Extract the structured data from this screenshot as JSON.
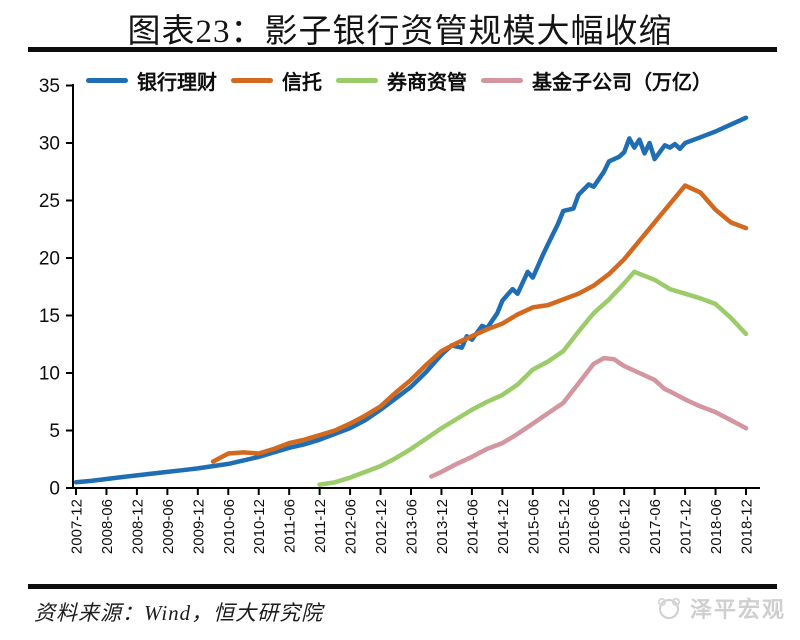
{
  "page": {
    "title": "图表23：影子银行资管规模大幅收缩"
  },
  "footer": {
    "source": "资料来源：Wind，恒大研究院",
    "watermark": "泽平宏观"
  },
  "chart_data": {
    "type": "line",
    "title": "图表23：影子银行资管规模大幅收缩",
    "unit": "万亿",
    "ylim": [
      0,
      35
    ],
    "yticks": [
      0,
      5,
      10,
      15,
      20,
      25,
      30,
      35
    ],
    "xtick_labels": [
      "2007-12",
      "2008-06",
      "2008-12",
      "2009-06",
      "2009-12",
      "2010-06",
      "2010-12",
      "2011-06",
      "2011-12",
      "2012-06",
      "2012-12",
      "2013-06",
      "2013-12",
      "2014-06",
      "2014-12",
      "2015-06",
      "2015-12",
      "2016-06",
      "2016-12",
      "2017-06",
      "2017-12",
      "2018-06",
      "2018-12"
    ],
    "grid": false,
    "legend_position": "top",
    "axis_color": "#000000",
    "series": [
      {
        "key": "bank-wealth-management",
        "name": "银行理财",
        "color": "#1F6EB4",
        "points": [
          [
            "2007-12",
            0.5
          ],
          [
            "2008-03",
            0.62
          ],
          [
            "2008-06",
            0.78
          ],
          [
            "2008-09",
            0.95
          ],
          [
            "2008-12",
            1.1
          ],
          [
            "2009-03",
            1.25
          ],
          [
            "2009-06",
            1.4
          ],
          [
            "2009-09",
            1.55
          ],
          [
            "2009-12",
            1.7
          ],
          [
            "2010-03",
            1.9
          ],
          [
            "2010-06",
            2.1
          ],
          [
            "2010-09",
            2.4
          ],
          [
            "2010-12",
            2.7
          ],
          [
            "2011-03",
            3.1
          ],
          [
            "2011-06",
            3.5
          ],
          [
            "2011-09",
            3.8
          ],
          [
            "2011-12",
            4.2
          ],
          [
            "2012-03",
            4.7
          ],
          [
            "2012-06",
            5.2
          ],
          [
            "2012-09",
            5.9
          ],
          [
            "2012-12",
            6.8
          ],
          [
            "2013-03",
            7.8
          ],
          [
            "2013-06",
            8.8
          ],
          [
            "2013-09",
            10.1
          ],
          [
            "2013-12",
            11.6
          ],
          [
            "2014-02",
            12.4
          ],
          [
            "2014-04",
            12.2
          ],
          [
            "2014-05",
            13.2
          ],
          [
            "2014-06",
            12.9
          ],
          [
            "2014-08",
            14.1
          ],
          [
            "2014-09",
            13.9
          ],
          [
            "2014-11",
            15.2
          ],
          [
            "2014-12",
            16.3
          ],
          [
            "2015-02",
            17.3
          ],
          [
            "2015-03",
            16.9
          ],
          [
            "2015-05",
            18.8
          ],
          [
            "2015-06",
            18.3
          ],
          [
            "2015-08",
            20.3
          ],
          [
            "2015-09",
            21.2
          ],
          [
            "2015-11",
            23.0
          ],
          [
            "2015-12",
            24.1
          ],
          [
            "2016-02",
            24.3
          ],
          [
            "2016-03",
            25.5
          ],
          [
            "2016-05",
            26.4
          ],
          [
            "2016-06",
            26.2
          ],
          [
            "2016-08",
            27.5
          ],
          [
            "2016-09",
            28.4
          ],
          [
            "2016-11",
            28.8
          ],
          [
            "2016-12",
            29.2
          ],
          [
            "2017-01",
            30.4
          ],
          [
            "2017-02",
            29.6
          ],
          [
            "2017-03",
            30.3
          ],
          [
            "2017-04",
            29.1
          ],
          [
            "2017-05",
            30.0
          ],
          [
            "2017-06",
            28.6
          ],
          [
            "2017-08",
            29.8
          ],
          [
            "2017-09",
            29.6
          ],
          [
            "2017-10",
            29.9
          ],
          [
            "2017-11",
            29.5
          ],
          [
            "2017-12",
            30.0
          ],
          [
            "2018-03",
            30.5
          ],
          [
            "2018-06",
            31.0
          ],
          [
            "2018-09",
            31.6
          ],
          [
            "2018-12",
            32.2
          ]
        ]
      },
      {
        "key": "trust",
        "name": "信托",
        "color": "#D2691E",
        "points": [
          [
            "2010-03",
            2.3
          ],
          [
            "2010-06",
            3.0
          ],
          [
            "2010-09",
            3.1
          ],
          [
            "2010-12",
            3.0
          ],
          [
            "2011-03",
            3.4
          ],
          [
            "2011-06",
            3.9
          ],
          [
            "2011-09",
            4.2
          ],
          [
            "2011-12",
            4.6
          ],
          [
            "2012-03",
            5.0
          ],
          [
            "2012-06",
            5.6
          ],
          [
            "2012-09",
            6.3
          ],
          [
            "2012-12",
            7.1
          ],
          [
            "2013-03",
            8.3
          ],
          [
            "2013-06",
            9.4
          ],
          [
            "2013-09",
            10.7
          ],
          [
            "2013-12",
            11.9
          ],
          [
            "2014-03",
            12.6
          ],
          [
            "2014-06",
            13.2
          ],
          [
            "2014-09",
            13.8
          ],
          [
            "2014-12",
            14.3
          ],
          [
            "2015-03",
            15.1
          ],
          [
            "2015-06",
            15.7
          ],
          [
            "2015-09",
            15.9
          ],
          [
            "2015-12",
            16.4
          ],
          [
            "2016-03",
            16.9
          ],
          [
            "2016-06",
            17.6
          ],
          [
            "2016-09",
            18.6
          ],
          [
            "2016-12",
            19.9
          ],
          [
            "2017-03",
            21.5
          ],
          [
            "2017-06",
            23.1
          ],
          [
            "2017-09",
            24.7
          ],
          [
            "2017-12",
            26.3
          ],
          [
            "2018-03",
            25.7
          ],
          [
            "2018-06",
            24.2
          ],
          [
            "2018-09",
            23.1
          ],
          [
            "2018-12",
            22.6
          ]
        ]
      },
      {
        "key": "broker-asset-management",
        "name": "券商资管",
        "color": "#9CCB6A",
        "points": [
          [
            "2011-12",
            0.3
          ],
          [
            "2012-03",
            0.5
          ],
          [
            "2012-06",
            0.9
          ],
          [
            "2012-09",
            1.4
          ],
          [
            "2012-12",
            1.9
          ],
          [
            "2013-03",
            2.6
          ],
          [
            "2013-06",
            3.4
          ],
          [
            "2013-09",
            4.3
          ],
          [
            "2013-12",
            5.2
          ],
          [
            "2014-03",
            6.0
          ],
          [
            "2014-06",
            6.8
          ],
          [
            "2014-09",
            7.5
          ],
          [
            "2014-12",
            8.1
          ],
          [
            "2015-03",
            9.0
          ],
          [
            "2015-06",
            10.3
          ],
          [
            "2015-09",
            11.0
          ],
          [
            "2015-12",
            11.9
          ],
          [
            "2016-03",
            13.6
          ],
          [
            "2016-06",
            15.2
          ],
          [
            "2016-09",
            16.4
          ],
          [
            "2016-12",
            17.8
          ],
          [
            "2017-02",
            18.8
          ],
          [
            "2017-06",
            18.1
          ],
          [
            "2017-09",
            17.3
          ],
          [
            "2017-12",
            16.9
          ],
          [
            "2018-03",
            16.5
          ],
          [
            "2018-06",
            16.0
          ],
          [
            "2018-09",
            14.8
          ],
          [
            "2018-12",
            13.4
          ]
        ]
      },
      {
        "key": "fund-subsidiary",
        "name": "基金子公司（万亿）",
        "color": "#D396A0",
        "points": [
          [
            "2013-10",
            1.0
          ],
          [
            "2013-12",
            1.4
          ],
          [
            "2014-03",
            2.1
          ],
          [
            "2014-06",
            2.7
          ],
          [
            "2014-09",
            3.4
          ],
          [
            "2014-12",
            3.9
          ],
          [
            "2015-03",
            4.7
          ],
          [
            "2015-06",
            5.6
          ],
          [
            "2015-09",
            6.5
          ],
          [
            "2015-12",
            7.4
          ],
          [
            "2016-03",
            9.1
          ],
          [
            "2016-06",
            10.8
          ],
          [
            "2016-08",
            11.3
          ],
          [
            "2016-10",
            11.2
          ],
          [
            "2016-12",
            10.6
          ],
          [
            "2017-03",
            10.0
          ],
          [
            "2017-06",
            9.4
          ],
          [
            "2017-08",
            8.6
          ],
          [
            "2017-09",
            8.4
          ],
          [
            "2017-12",
            7.7
          ],
          [
            "2018-03",
            7.1
          ],
          [
            "2018-06",
            6.6
          ],
          [
            "2018-09",
            5.9
          ],
          [
            "2018-12",
            5.2
          ]
        ]
      }
    ]
  }
}
